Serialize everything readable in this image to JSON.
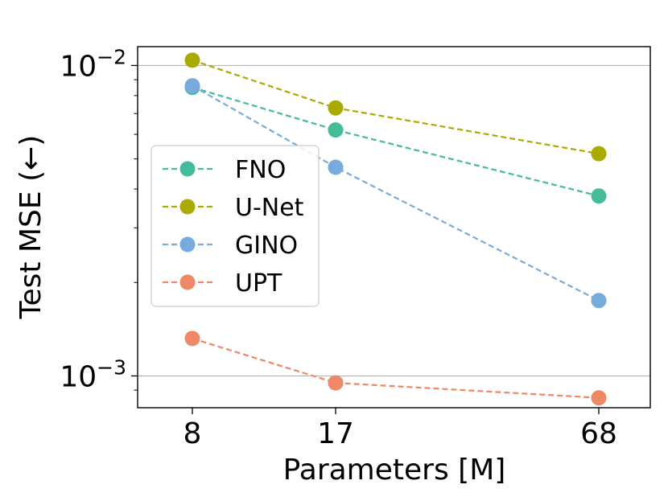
{
  "chart_data": {
    "type": "line",
    "title": "",
    "xlabel": "Parameters [M]",
    "ylabel": "Test MSE (←)",
    "yscale": "log",
    "ylim": [
      0.00079,
      0.0115
    ],
    "categories": [
      "8",
      "17",
      "68"
    ],
    "x_ticks": [
      {
        "label": "8"
      },
      {
        "label": "17"
      },
      {
        "label": "68"
      }
    ],
    "y_ticks": [
      {
        "value": 0.01,
        "base": "10",
        "exp": "−2"
      },
      {
        "value": 0.001,
        "base": "10",
        "exp": "−3"
      }
    ],
    "y_minor_ticks": [
      0.0009,
      0.002,
      0.003,
      0.004,
      0.005,
      0.006,
      0.007,
      0.008,
      0.009
    ],
    "grid": "major-y",
    "legend_position": "center-left",
    "series": [
      {
        "name": "FNO",
        "color": "#44bb99",
        "values": [
          0.0085,
          0.0062,
          0.0038
        ]
      },
      {
        "name": "U-Net",
        "color": "#aaaa00",
        "values": [
          0.0104,
          0.0073,
          0.0052
        ]
      },
      {
        "name": "GINO",
        "color": "#77aadd",
        "values": [
          0.0086,
          0.0047,
          0.00175
        ]
      },
      {
        "name": "UPT",
        "color": "#ee8866",
        "values": [
          0.00132,
          0.00095,
          0.00085
        ]
      }
    ]
  }
}
